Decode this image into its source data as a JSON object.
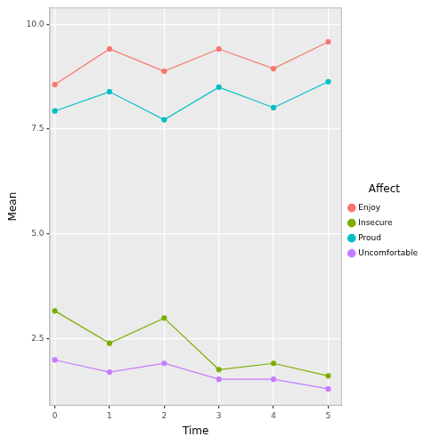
{
  "chart_data": {
    "type": "line",
    "x_label": "Time",
    "y_label": "Mean",
    "legend_title": "Affect",
    "x": [
      0,
      1,
      2,
      3,
      4,
      5
    ],
    "series": [
      {
        "name": "Enjoy",
        "color": "#F8766D",
        "values": [
          8.56,
          9.41,
          8.88,
          9.41,
          8.94,
          9.58
        ]
      },
      {
        "name": "Insecure",
        "color": "#7CAE00",
        "values": [
          3.16,
          2.39,
          2.99,
          1.76,
          1.91,
          1.61
        ]
      },
      {
        "name": "Proud",
        "color": "#00BFC4",
        "values": [
          7.93,
          8.39,
          7.72,
          8.5,
          8.01,
          8.63
        ]
      },
      {
        "name": "Uncomfortable",
        "color": "#C77CFF",
        "values": [
          1.99,
          1.7,
          1.91,
          1.53,
          1.53,
          1.3
        ]
      }
    ],
    "xlim": [
      -0.1,
      5.25
    ],
    "xticks": [
      0,
      1,
      2,
      3,
      4,
      5
    ],
    "ylim": [
      0.9,
      10.4
    ],
    "yticks": [
      2.5,
      {
        "value": 5,
        "label": "5.0"
      },
      7.5,
      {
        "value": 10,
        "label": "10.0"
      }
    ],
    "grid": true,
    "legend": "right",
    "marker": "circle"
  }
}
